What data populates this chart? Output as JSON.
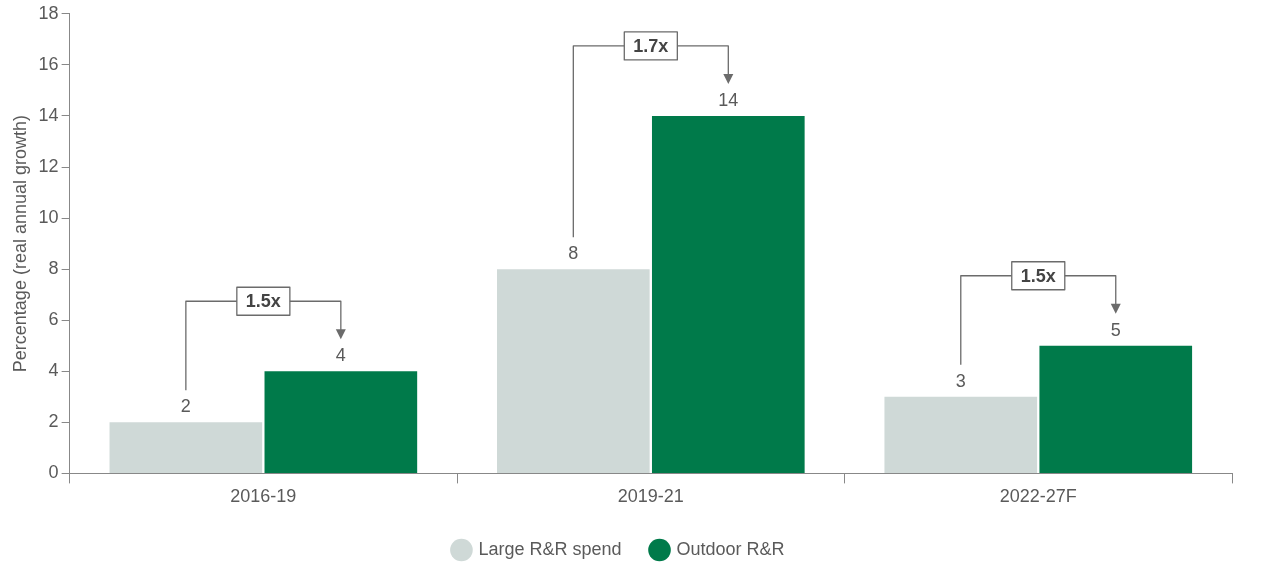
{
  "chart_data": {
    "type": "bar",
    "ylabel": "Percentage (real annual growth)",
    "categories": [
      "2016-19",
      "2019-21",
      "2022-27F"
    ],
    "series": [
      {
        "name": "Large R&R spend",
        "color": "#cfd9d7",
        "values": [
          2,
          8,
          3
        ]
      },
      {
        "name": "Outdoor R&R",
        "color": "#007a4a",
        "values": [
          4,
          14,
          5
        ]
      }
    ],
    "ylim": [
      0,
      18
    ],
    "yticks": [
      0,
      2,
      4,
      6,
      8,
      10,
      12,
      14,
      16,
      18
    ],
    "grid": false,
    "legend": "bottom",
    "data_labels": true,
    "annotations": [
      "1.5x",
      "1.7x",
      "1.5x"
    ]
  }
}
